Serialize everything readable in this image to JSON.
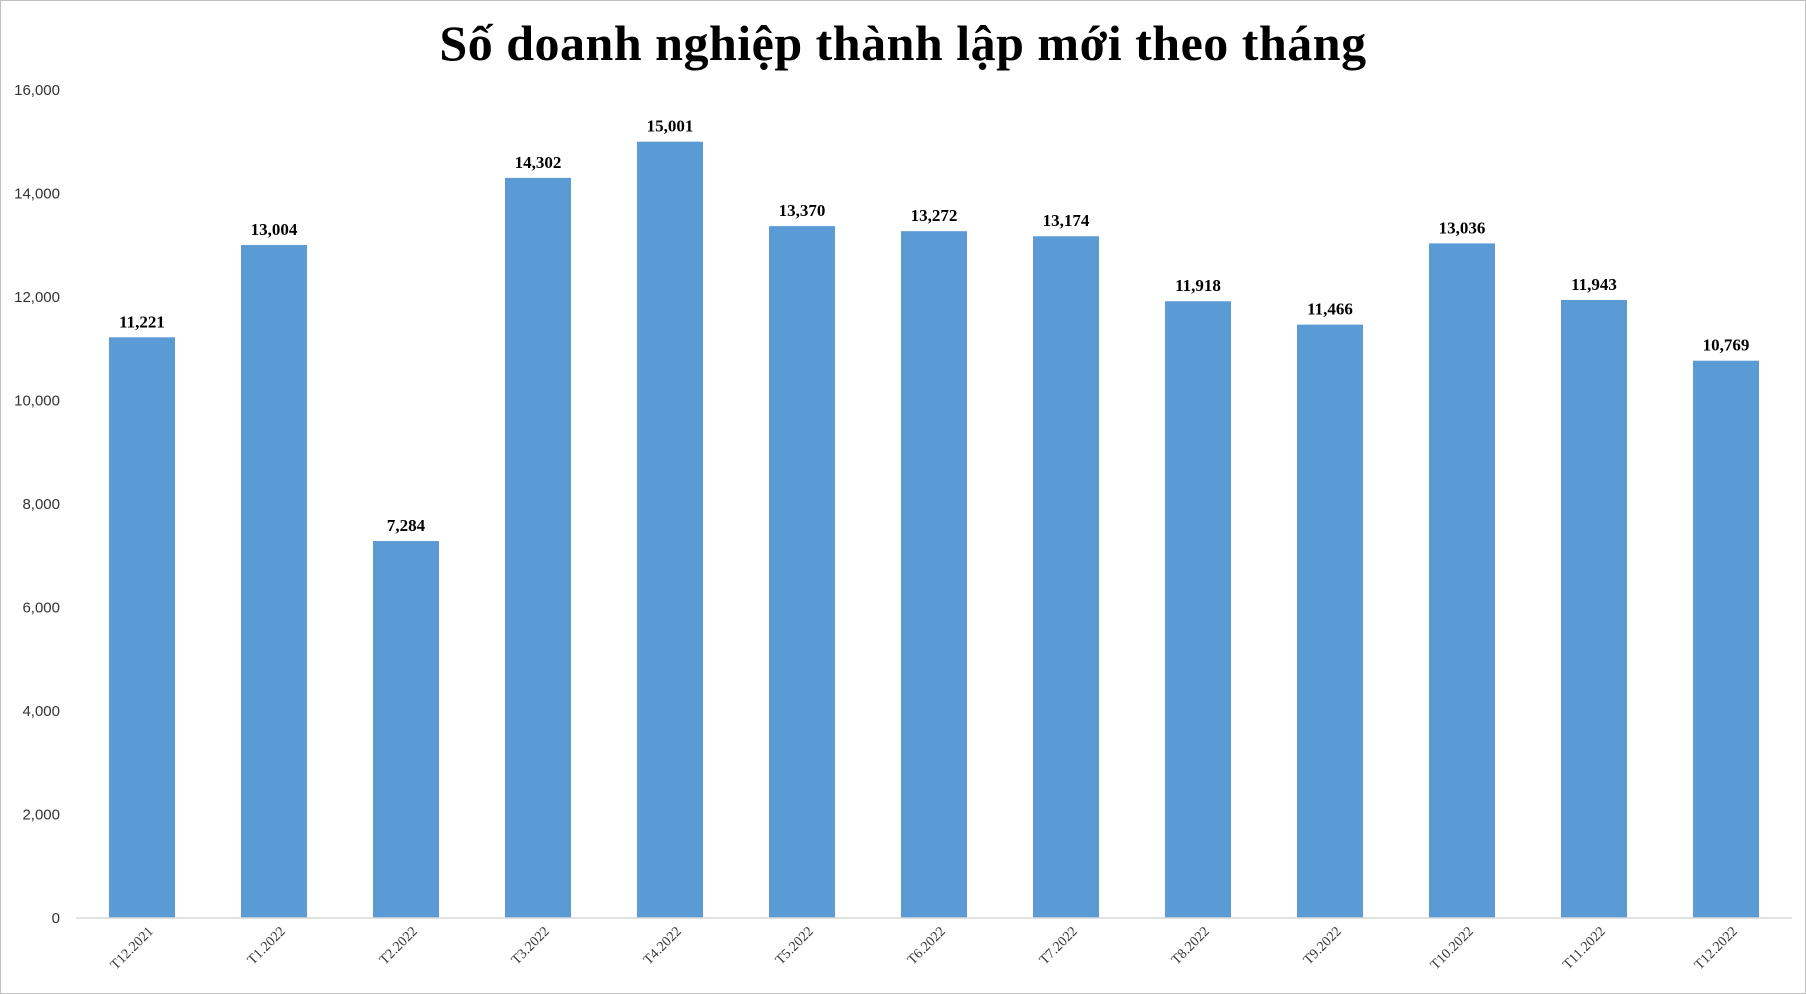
{
  "chart_data": {
    "type": "bar",
    "title": "Số doanh nghiệp thành lập mới theo tháng",
    "xlabel": "",
    "ylabel": "",
    "categories": [
      "T12.2021",
      "T1.2022",
      "T2.2022",
      "T3.2022",
      "T4.2022",
      "T5.2022",
      "T6.2022",
      "T7.2022",
      "T8.2022",
      "T9.2022",
      "T10.2022",
      "T11.2022",
      "T12.2022"
    ],
    "values": [
      11221,
      13004,
      7284,
      14302,
      15001,
      13370,
      13272,
      13174,
      11918,
      11466,
      13036,
      11943,
      10769
    ],
    "value_labels": [
      "11,221",
      "13,004",
      "7,284",
      "14,302",
      "15,001",
      "13,370",
      "13,272",
      "13,174",
      "11,918",
      "11,466",
      "13,036",
      "11,943",
      "10,769"
    ],
    "ylim": [
      0,
      16000
    ],
    "yticks": [
      0,
      2000,
      4000,
      6000,
      8000,
      10000,
      12000,
      14000,
      16000
    ],
    "ytick_labels": [
      "0",
      "2,000",
      "4,000",
      "6,000",
      "8,000",
      "10,000",
      "12,000",
      "14,000",
      "16,000"
    ],
    "grid": false,
    "legend": "none",
    "bar_color": "#5b9bd5",
    "axis_color": "#d9d9d9"
  }
}
